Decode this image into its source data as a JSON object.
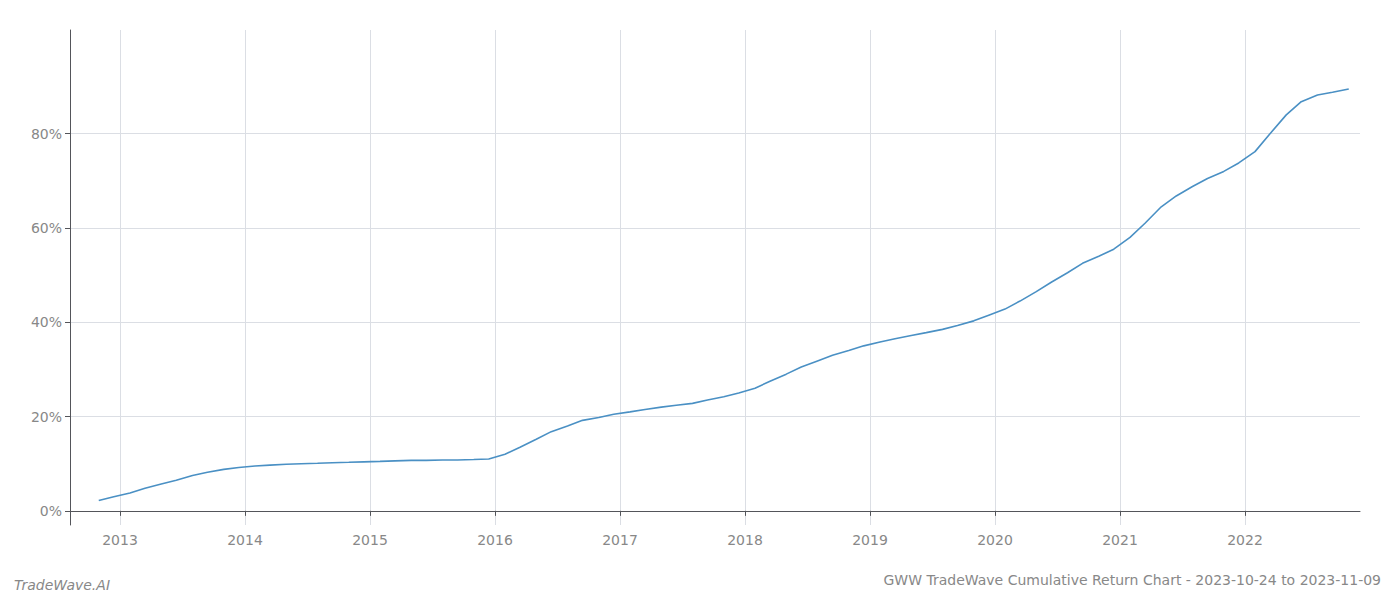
{
  "chart_data": {
    "type": "line",
    "title": "GWW TradeWave Cumulative Return Chart - 2023-10-24 to 2023-11-09",
    "annotations": [
      "TradeWave.AI"
    ],
    "color": "#4a90c4",
    "grid": true,
    "x": [
      2012.83,
      2012.95,
      2013.08,
      2013.2,
      2013.33,
      2013.45,
      2013.58,
      2013.7,
      2013.83,
      2013.95,
      2014.08,
      2014.2,
      2014.33,
      2014.45,
      2014.58,
      2014.7,
      2014.83,
      2014.95,
      2015.08,
      2015.2,
      2015.33,
      2015.45,
      2015.58,
      2015.7,
      2015.83,
      2015.95,
      2016.08,
      2016.2,
      2016.33,
      2016.45,
      2016.58,
      2016.7,
      2016.83,
      2016.95,
      2017.08,
      2017.2,
      2017.33,
      2017.45,
      2017.58,
      2017.7,
      2017.83,
      2017.95,
      2018.08,
      2018.2,
      2018.33,
      2018.45,
      2018.58,
      2018.7,
      2018.83,
      2018.95,
      2019.08,
      2019.2,
      2019.33,
      2019.45,
      2019.58,
      2019.7,
      2019.83,
      2019.95,
      2020.08,
      2020.2,
      2020.33,
      2020.45,
      2020.58,
      2020.7,
      2020.83,
      2020.95,
      2021.08,
      2021.2,
      2021.33,
      2021.45,
      2021.58,
      2021.7,
      2021.83,
      2021.95,
      2022.08,
      2022.2,
      2022.33,
      2022.45,
      2022.58,
      2022.7,
      2022.83
    ],
    "values": [
      0.022,
      0.03,
      0.038,
      0.048,
      0.057,
      0.065,
      0.075,
      0.082,
      0.088,
      0.092,
      0.095,
      0.097,
      0.099,
      0.1,
      0.101,
      0.102,
      0.103,
      0.104,
      0.105,
      0.106,
      0.107,
      0.107,
      0.108,
      0.108,
      0.109,
      0.11,
      0.12,
      0.135,
      0.152,
      0.168,
      0.18,
      0.192,
      0.198,
      0.205,
      0.21,
      0.215,
      0.22,
      0.224,
      0.228,
      0.235,
      0.242,
      0.25,
      0.26,
      0.275,
      0.29,
      0.305,
      0.318,
      0.33,
      0.34,
      0.35,
      0.358,
      0.365,
      0.372,
      0.378,
      0.385,
      0.393,
      0.403,
      0.415,
      0.428,
      0.445,
      0.465,
      0.485,
      0.505,
      0.525,
      0.54,
      0.555,
      0.58,
      0.61,
      0.645,
      0.668,
      0.688,
      0.705,
      0.72,
      0.738,
      0.762,
      0.8,
      0.84,
      0.868,
      0.882,
      0.888,
      0.895
    ],
    "xlim": [
      2012.6,
      2022.92
    ],
    "xticks": [
      2013,
      2014,
      2015,
      2016,
      2017,
      2018,
      2019,
      2020,
      2021,
      2022
    ],
    "ylim": [
      -0.03,
      1.02
    ],
    "yticks": [
      {
        "value": 0.0,
        "label": "0%"
      },
      {
        "value": 0.2,
        "label": "20%"
      },
      {
        "value": 0.4,
        "label": "40%"
      },
      {
        "value": 0.6,
        "label": "60%"
      },
      {
        "value": 0.8,
        "label": "80%"
      }
    ]
  }
}
